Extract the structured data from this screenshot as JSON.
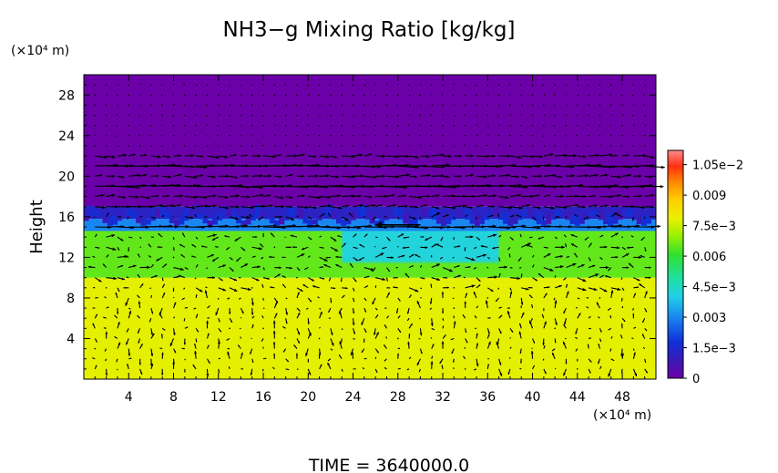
{
  "chart_data": {
    "type": "heatmap",
    "title": "NH3−g Mixing Ratio [kg/kg]",
    "ylabel": "Height",
    "xunit": "(×10⁴ m)",
    "yunit": "(×10⁴ m)",
    "footer": "TIME = 3640000.0",
    "xlim": [
      0,
      51
    ],
    "ylim": [
      0,
      30
    ],
    "xticks": [
      4,
      8,
      12,
      16,
      20,
      24,
      28,
      32,
      36,
      40,
      44,
      48
    ],
    "yticks": [
      4,
      8,
      12,
      16,
      20,
      24,
      28
    ],
    "xtick_labels": [
      "4",
      "8",
      "12",
      "16",
      "20",
      "24",
      "28",
      "32",
      "36",
      "40",
      "44",
      "48"
    ],
    "ytick_labels": [
      "4",
      "8",
      "12",
      "16",
      "20",
      "24",
      "28"
    ],
    "colorbar": {
      "range": [
        0,
        0.0112
      ],
      "ticks": [
        0,
        0.0015,
        0.003,
        0.0045,
        0.006,
        0.0075,
        0.009,
        0.0105
      ],
      "tick_labels": [
        "0",
        "1.5e−3",
        "0.003",
        "4.5e−3",
        "0.006",
        "7.5e−3",
        "0.009",
        "1.05e−2"
      ]
    },
    "field_zones": [
      {
        "y_range": [
          0,
          10
        ],
        "value": 0.0078
      },
      {
        "y_range": [
          10,
          10.8
        ],
        "x_range": [
          2,
          8
        ],
        "value": 0.0086
      },
      {
        "y_range": [
          10,
          14.6
        ],
        "value": 0.0065
      },
      {
        "y_range": [
          11.5,
          15.5
        ],
        "x_range": [
          23,
          37
        ],
        "value": 0.0042
      },
      {
        "y_range": [
          14.6,
          15.8
        ],
        "value": 0.003
      },
      {
        "y_range": [
          15.8,
          17
        ],
        "value": 0.0012
      },
      {
        "y_range": [
          17,
          30
        ],
        "value": 0.0
      }
    ],
    "vector_field": {
      "x_spacing": 1.0,
      "y_spacing": 1.0,
      "strong_jet_levels": [
        19,
        21,
        15
      ],
      "strong_jet_arrow": {
        "x": 30,
        "y": 15.2,
        "u": -4,
        "v": 0
      }
    }
  }
}
